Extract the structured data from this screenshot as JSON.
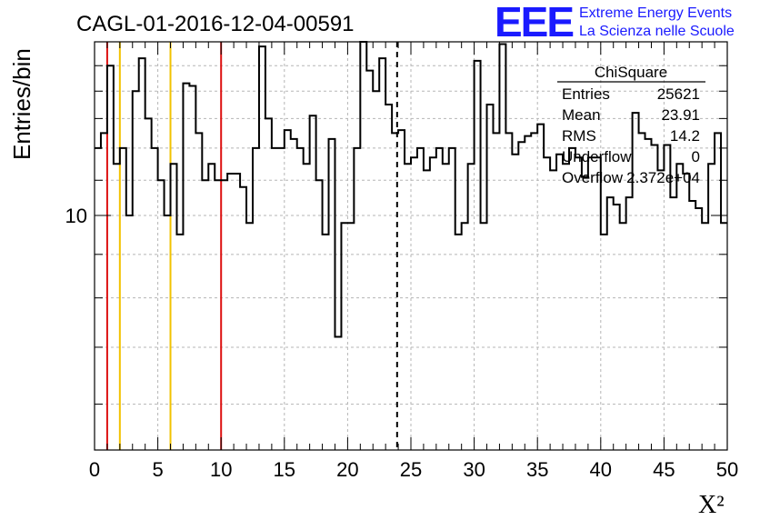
{
  "title": "CAGL-01-2016-12-04-00591",
  "logo": {
    "mark": "EEE",
    "line1": "Extreme Energy Events",
    "line2": "La Scienza nelle Scuole",
    "color": "#1a1aff"
  },
  "stats": {
    "name": "ChiSquare",
    "rows": [
      {
        "label": "Entries",
        "value": "25621"
      },
      {
        "label": "Mean",
        "value": "23.91"
      },
      {
        "label": "RMS",
        "value": "14.2"
      },
      {
        "label": "Underflow",
        "value": "0"
      },
      {
        "label": "Overflow",
        "value": "2.372e+04"
      }
    ]
  },
  "chart_data": {
    "type": "histogram",
    "xlabel": "X²",
    "ylabel": "Entries/bin",
    "xlim": [
      0,
      50
    ],
    "ylim": [
      5.3,
      16
    ],
    "yscale": "log",
    "ytick_labels": [
      {
        "value": 10,
        "label": "10"
      }
    ],
    "xtick_labels": [
      "0",
      "5",
      "10",
      "15",
      "20",
      "25",
      "30",
      "35",
      "40",
      "45",
      "50"
    ],
    "grid": true,
    "bin_width": 0.5,
    "bin_start": 0,
    "counts": [
      12,
      12.5,
      15,
      11.5,
      12,
      10,
      14,
      15.3,
      13,
      12,
      11,
      10,
      11.5,
      9.5,
      14.3,
      14.2,
      12.5,
      11,
      11.5,
      11,
      11,
      11.2,
      11.2,
      10.8,
      9.8,
      12,
      15.8,
      13,
      12,
      12,
      12.6,
      12.3,
      12,
      11.5,
      13.1,
      11,
      9.5,
      12.3,
      7.2,
      9.8,
      9.8,
      12,
      16.6,
      14.8,
      14,
      15.3,
      13.5,
      12.5,
      12.6,
      11.5,
      11.7,
      12,
      11.3,
      11.7,
      12,
      11.5,
      12,
      9.5,
      9.8,
      11.5,
      15.2,
      9.8,
      13.5,
      12.5,
      15.9,
      12.5,
      11.8,
      12.2,
      12.4,
      12.5,
      12.8,
      11.7,
      11.3,
      11.8,
      11.5,
      12,
      11.7,
      11.1,
      11.7,
      11.7,
      9.5,
      10.5,
      10.3,
      9.8,
      10.5,
      13.2,
      12.5,
      12.3,
      12.1,
      11.3,
      12.1,
      10.5,
      11.5,
      11.2,
      10.4,
      10.2,
      9.8,
      11.5,
      12.5,
      9.8
    ],
    "reference_lines": [
      {
        "x": 1,
        "color": "#dd1111",
        "style": "solid"
      },
      {
        "x": 2,
        "color": "#f2c200",
        "style": "solid"
      },
      {
        "x": 6,
        "color": "#f2c200",
        "style": "solid"
      },
      {
        "x": 10,
        "color": "#dd1111",
        "style": "solid"
      },
      {
        "x": 23.91,
        "color": "#000000",
        "style": "dashed"
      }
    ]
  }
}
